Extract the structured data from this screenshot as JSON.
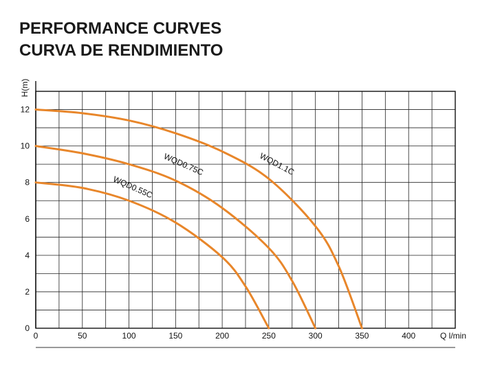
{
  "header": {
    "title_line1": "PERFORMANCE CURVES",
    "title_line2": "CURVA DE RENDIMIENTO"
  },
  "chart_data": {
    "type": "line",
    "title": "PERFORMANCE CURVES / CURVA DE RENDIMIENTO",
    "xlabel": "Q l/min",
    "ylabel": "H(m)",
    "xlim": [
      0,
      450
    ],
    "ylim": [
      0,
      13
    ],
    "x_ticks": [
      0,
      50,
      100,
      150,
      200,
      250,
      300,
      350,
      400
    ],
    "y_ticks": [
      0,
      2,
      4,
      6,
      8,
      10,
      12
    ],
    "x_tick_labels": [
      "0",
      "50",
      "100",
      "150",
      "200",
      "250",
      "300",
      "350",
      "400"
    ],
    "y_tick_labels": [
      "0",
      "2",
      "4",
      "6",
      "8",
      "10",
      "12"
    ],
    "grid": true,
    "curve_color": "#e8862a",
    "series": [
      {
        "name": "WQD1.1C",
        "points": [
          [
            0,
            12
          ],
          [
            50,
            11.8
          ],
          [
            100,
            11.4
          ],
          [
            150,
            10.7
          ],
          [
            200,
            9.7
          ],
          [
            250,
            8.2
          ],
          [
            300,
            5.6
          ],
          [
            325,
            3.4
          ],
          [
            350,
            0
          ]
        ]
      },
      {
        "name": "WQD0.75C",
        "points": [
          [
            0,
            10
          ],
          [
            50,
            9.6
          ],
          [
            100,
            9.0
          ],
          [
            150,
            8.1
          ],
          [
            200,
            6.6
          ],
          [
            250,
            4.4
          ],
          [
            275,
            2.6
          ],
          [
            300,
            0
          ]
        ]
      },
      {
        "name": "WQD0.55C",
        "points": [
          [
            0,
            8
          ],
          [
            50,
            7.7
          ],
          [
            100,
            7.0
          ],
          [
            150,
            5.8
          ],
          [
            200,
            3.9
          ],
          [
            225,
            2.3
          ],
          [
            250,
            0
          ]
        ]
      }
    ]
  }
}
